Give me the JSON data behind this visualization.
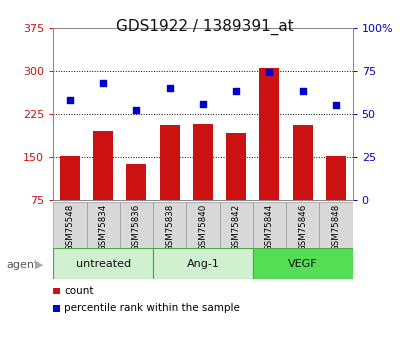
{
  "title": "GDS1922 / 1389391_at",
  "samples": [
    "GSM75548",
    "GSM75834",
    "GSM75836",
    "GSM75838",
    "GSM75840",
    "GSM75842",
    "GSM75844",
    "GSM75846",
    "GSM75848"
  ],
  "counts": [
    152,
    195,
    138,
    205,
    207,
    192,
    305,
    205,
    152
  ],
  "percentiles": [
    58,
    68,
    52,
    65,
    56,
    63,
    74,
    63,
    55
  ],
  "groups": [
    {
      "label": "untreated",
      "indices": [
        0,
        1,
        2
      ],
      "color": "#d0f0d0"
    },
    {
      "label": "Ang-1",
      "indices": [
        3,
        4,
        5
      ],
      "color": "#d0f0d0"
    },
    {
      "label": "VEGF",
      "indices": [
        6,
        7,
        8
      ],
      "color": "#55dd55"
    }
  ],
  "left_ylim": [
    75,
    375
  ],
  "left_yticks": [
    75,
    150,
    225,
    300,
    375
  ],
  "right_ylim": [
    0,
    100
  ],
  "right_yticks": [
    0,
    25,
    50,
    75,
    100
  ],
  "right_yticklabels": [
    "0",
    "25",
    "50",
    "75",
    "100%"
  ],
  "bar_color": "#cc1111",
  "dot_color": "#0000cc",
  "bar_width": 0.6,
  "agent_label": "agent",
  "legend_count_label": "count",
  "legend_pct_label": "percentile rank within the sample"
}
